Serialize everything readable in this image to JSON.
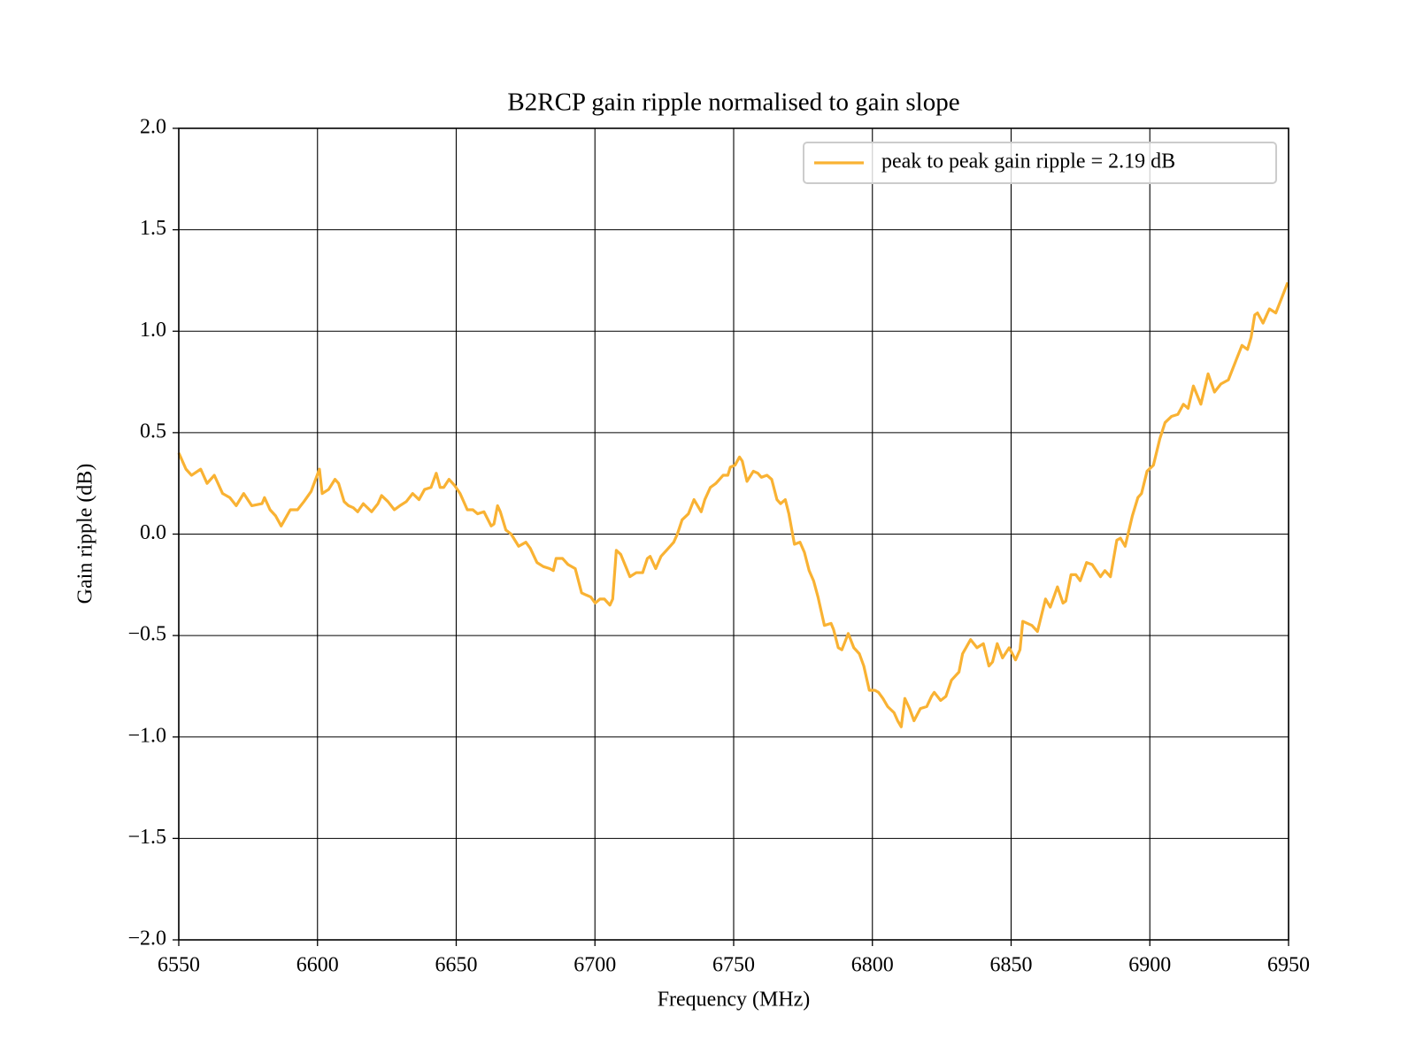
{
  "chart_data": {
    "type": "line",
    "title": "B2RCP gain ripple normalised to gain slope",
    "x_label": "Frequency (MHz)",
    "y_label": "Gain ripple (dB)",
    "xlim": [
      6550,
      6950
    ],
    "xticks": [
      6550,
      6600,
      6650,
      6700,
      6750,
      6800,
      6850,
      6900,
      6950
    ],
    "ylim": [
      -2,
      2
    ],
    "yticks": [
      {
        "value": -2,
        "label": "−2.0"
      },
      {
        "value": -1.5,
        "label": "−1.5"
      },
      {
        "value": -1,
        "label": "−1.0"
      },
      {
        "value": -0.5,
        "label": "−0.5"
      },
      {
        "value": 0,
        "label": "0.0"
      },
      0.5,
      {
        "value": 1,
        "label": "1.0"
      },
      1.5,
      {
        "value": 2,
        "label": "2.0"
      }
    ],
    "grid": true,
    "legend": "upper right",
    "x": [
      6550,
      6552.6,
      6554.6,
      6557.9,
      6560.2,
      6562.8,
      6565.8,
      6568.4,
      6570.7,
      6573.4,
      6576.3,
      6580.0,
      6580.9,
      6582.9,
      6584.9,
      6586.9,
      6590.2,
      6592.8,
      6595.1,
      6597.7,
      6600.7,
      6601.7,
      6604.0,
      6606.3,
      6607.6,
      6609.6,
      6611.2,
      6612.9,
      6614.5,
      6616.5,
      6619.5,
      6621.8,
      6623.1,
      6625.4,
      6627.7,
      6629.7,
      6632.0,
      6634.3,
      6636.6,
      6638.6,
      6640.9,
      6642.8,
      6644.2,
      6645.5,
      6647.4,
      6649.4,
      6651.4,
      6654.0,
      6656.0,
      6657.7,
      6660.0,
      6662.6,
      6663.6,
      6664.9,
      6665.9,
      6667.9,
      6669.8,
      6672.5,
      6675.1,
      6676.7,
      6679.1,
      6681.4,
      6683.7,
      6685.0,
      6686.0,
      6688.3,
      6690.3,
      6692.9,
      6695.2,
      6696.8,
      6698.5,
      6700.1,
      6701.8,
      6703.4,
      6705.4,
      6706.4,
      6707.7,
      6709.3,
      6712.6,
      6714.9,
      6717.2,
      6718.9,
      6719.9,
      6721.9,
      6723.8,
      6725.8,
      6728.4,
      6729.7,
      6731.4,
      6733.7,
      6735.7,
      6738.3,
      6739.6,
      6741.6,
      6743.6,
      6746.2,
      6747.9,
      6748.8,
      6750.5,
      6752.1,
      6753.1,
      6754.8,
      6757.1,
      6758.7,
      6760.0,
      6762.0,
      6763.7,
      6765.6,
      6766.9,
      6768.6,
      6769.9,
      6771.9,
      6773.9,
      6775.5,
      6777.2,
      6778.8,
      6780.4,
      6782.7,
      6785.1,
      6786.0,
      6787.7,
      6789.0,
      6791.3,
      6793.3,
      6795.3,
      6796.9,
      6798.9,
      6800.9,
      6802.2,
      6803.8,
      6805.5,
      6807.8,
      6809.1,
      6810.4,
      6811.7,
      6813.4,
      6815.0,
      6817.3,
      6819.6,
      6821.3,
      6822.3,
      6824.6,
      6826.5,
      6828.5,
      6831.2,
      6832.5,
      6835.4,
      6837.7,
      6840.0,
      6842.0,
      6843.3,
      6845.0,
      6846.9,
      6849.3,
      6851.6,
      6853.2,
      6854.2,
      6857.5,
      6859.5,
      6862.4,
      6864.1,
      6866.7,
      6868.7,
      6869.7,
      6871.6,
      6873.3,
      6874.9,
      6877.2,
      6879.2,
      6882.2,
      6883.8,
      6885.8,
      6888.1,
      6889.4,
      6891.1,
      6893.7,
      6895.7,
      6897.0,
      6899.0,
      6901.3,
      6903.6,
      6905.5,
      6907.8,
      6910.1,
      6912.1,
      6913.8,
      6915.7,
      6918.4,
      6921.0,
      6923.3,
      6925.6,
      6928.3,
      6930.6,
      6933.2,
      6935.2,
      6936.5,
      6937.8,
      6938.8,
      6940.8,
      6943.1,
      6945.4,
      6947.7,
      6949.7
    ],
    "series": [
      {
        "name": "peak to peak gain ripple = 2.19 dB",
        "color": "#f9b233",
        "values": [
          0.4,
          0.32,
          0.29,
          0.32,
          0.25,
          0.29,
          0.2,
          0.18,
          0.14,
          0.2,
          0.14,
          0.15,
          0.18,
          0.12,
          0.09,
          0.04,
          0.12,
          0.12,
          0.16,
          0.21,
          0.32,
          0.2,
          0.22,
          0.27,
          0.25,
          0.16,
          0.14,
          0.13,
          0.11,
          0.15,
          0.11,
          0.15,
          0.19,
          0.16,
          0.12,
          0.14,
          0.16,
          0.2,
          0.17,
          0.22,
          0.23,
          0.3,
          0.23,
          0.23,
          0.27,
          0.24,
          0.2,
          0.12,
          0.12,
          0.1,
          0.11,
          0.04,
          0.05,
          0.14,
          0.11,
          0.02,
          0.0,
          -0.06,
          -0.04,
          -0.07,
          -0.14,
          -0.16,
          -0.17,
          -0.18,
          -0.12,
          -0.12,
          -0.15,
          -0.17,
          -0.29,
          -0.3,
          -0.31,
          -0.34,
          -0.32,
          -0.32,
          -0.35,
          -0.32,
          -0.08,
          -0.1,
          -0.21,
          -0.19,
          -0.19,
          -0.12,
          -0.11,
          -0.17,
          -0.11,
          -0.08,
          -0.04,
          0.0,
          0.07,
          0.1,
          0.17,
          0.11,
          0.17,
          0.23,
          0.25,
          0.29,
          0.29,
          0.33,
          0.34,
          0.38,
          0.36,
          0.26,
          0.31,
          0.3,
          0.28,
          0.29,
          0.27,
          0.17,
          0.15,
          0.17,
          0.1,
          -0.05,
          -0.04,
          -0.09,
          -0.18,
          -0.23,
          -0.31,
          -0.45,
          -0.44,
          -0.47,
          -0.56,
          -0.57,
          -0.49,
          -0.56,
          -0.59,
          -0.65,
          -0.77,
          -0.77,
          -0.78,
          -0.81,
          -0.85,
          -0.88,
          -0.92,
          -0.95,
          -0.81,
          -0.86,
          -0.92,
          -0.86,
          -0.85,
          -0.8,
          -0.78,
          -0.82,
          -0.8,
          -0.72,
          -0.68,
          -0.59,
          -0.52,
          -0.56,
          -0.54,
          -0.65,
          -0.63,
          -0.54,
          -0.61,
          -0.56,
          -0.62,
          -0.57,
          -0.43,
          -0.45,
          -0.48,
          -0.32,
          -0.36,
          -0.26,
          -0.34,
          -0.33,
          -0.2,
          -0.2,
          -0.23,
          -0.14,
          -0.15,
          -0.21,
          -0.18,
          -0.21,
          -0.03,
          -0.02,
          -0.06,
          0.09,
          0.18,
          0.2,
          0.31,
          0.34,
          0.47,
          0.55,
          0.58,
          0.59,
          0.64,
          0.62,
          0.73,
          0.64,
          0.79,
          0.7,
          0.74,
          0.76,
          0.84,
          0.93,
          0.91,
          0.97,
          1.08,
          1.09,
          1.04,
          1.11,
          1.09,
          1.17,
          1.24
        ]
      }
    ]
  }
}
